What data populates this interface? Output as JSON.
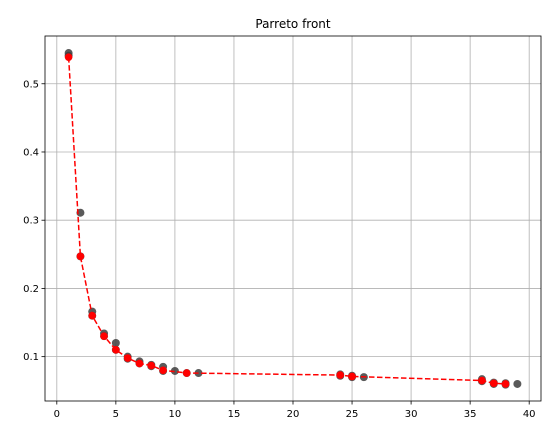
{
  "chart_data": {
    "type": "scatter",
    "title": "Parreto front",
    "xlabel": "",
    "ylabel": "",
    "xlim": [
      -1.0,
      41.0
    ],
    "ylim": [
      0.035,
      0.57
    ],
    "xticks": [
      0,
      5,
      10,
      15,
      20,
      25,
      30,
      35,
      40
    ],
    "yticks": [
      0.1,
      0.2,
      0.3,
      0.4,
      0.5
    ],
    "grid": true,
    "colors": {
      "all_points": "#3d3d3d",
      "front": "#ff0000"
    },
    "all_points": [
      [
        1,
        0.545
      ],
      [
        1,
        0.541
      ],
      [
        2,
        0.311
      ],
      [
        2,
        0.247
      ],
      [
        3,
        0.166
      ],
      [
        3,
        0.16
      ],
      [
        4,
        0.134
      ],
      [
        4,
        0.13
      ],
      [
        5,
        0.12
      ],
      [
        5,
        0.11
      ],
      [
        6,
        0.1
      ],
      [
        6,
        0.097
      ],
      [
        7,
        0.093
      ],
      [
        7,
        0.09
      ],
      [
        8,
        0.088
      ],
      [
        8,
        0.086
      ],
      [
        9,
        0.085
      ],
      [
        9,
        0.079
      ],
      [
        10,
        0.079
      ],
      [
        11,
        0.076
      ],
      [
        12,
        0.076
      ],
      [
        24,
        0.074
      ],
      [
        24,
        0.072
      ],
      [
        25,
        0.072
      ],
      [
        25,
        0.07
      ],
      [
        26,
        0.07
      ],
      [
        36,
        0.067
      ],
      [
        36,
        0.064
      ],
      [
        37,
        0.062
      ],
      [
        37,
        0.06
      ],
      [
        38,
        0.061
      ],
      [
        38,
        0.059
      ],
      [
        39,
        0.06
      ]
    ],
    "series": [
      {
        "style": "dashed-line-markers",
        "x": [
          1,
          2,
          3,
          4,
          5,
          6,
          7,
          8,
          9,
          11,
          24,
          25,
          36,
          37,
          38
        ],
        "y": [
          0.539,
          0.247,
          0.16,
          0.13,
          0.11,
          0.098,
          0.09,
          0.087,
          0.08,
          0.076,
          0.073,
          0.071,
          0.065,
          0.061,
          0.06
        ]
      }
    ]
  }
}
